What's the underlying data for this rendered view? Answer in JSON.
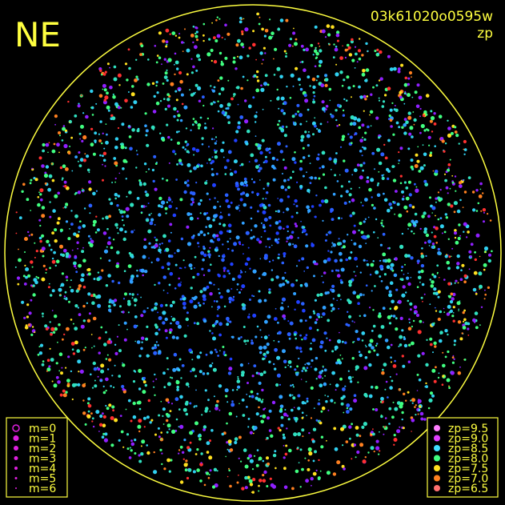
{
  "header": {
    "direction": "NE",
    "frame_id": "03k61020o0595w",
    "quantity": "zp"
  },
  "magnitude_legend": {
    "items": [
      "m=0",
      "m=1",
      "m=2",
      "m=3",
      "m=4",
      "m=5",
      "m=6"
    ],
    "color": "#e020e0"
  },
  "zp_legend": {
    "items": [
      {
        "label": "zp=9.5",
        "color": "#ff80ff"
      },
      {
        "label": "zp=9.0",
        "color": "#e040ff"
      },
      {
        "label": "zp=8.5",
        "color": "#40e0ff"
      },
      {
        "label": "zp=8.0",
        "color": "#40ff80"
      },
      {
        "label": "zp=7.5",
        "color": "#ffe020"
      },
      {
        "label": "zp=7.0",
        "color": "#ff8020"
      },
      {
        "label": "zp=6.5",
        "color": "#ff7070"
      }
    ]
  }
}
